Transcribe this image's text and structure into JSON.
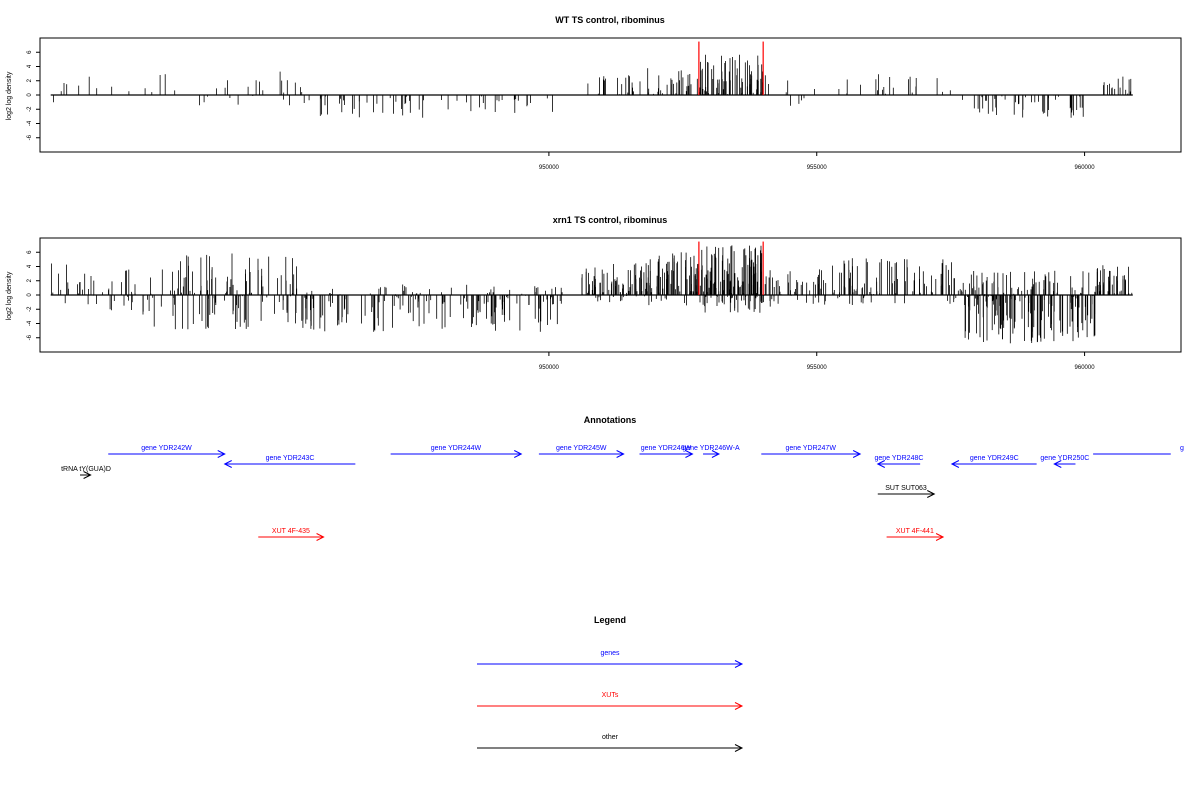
{
  "chart_data": [
    {
      "type": "bar",
      "title": "WT TS control, ribominus",
      "ylabel": "log2 log density",
      "xlabel": "",
      "xlim": [
        940500,
        961800
      ],
      "ylim": [
        -8,
        8
      ],
      "x_ticks": [
        950000,
        955000,
        960000
      ],
      "x_tick_labels": [
        "950000",
        "955000",
        "960000"
      ],
      "y_ticks": [
        -6,
        -4,
        -2,
        0,
        2,
        4,
        6
      ],
      "y_tick_labels": [
        "-6",
        "-4",
        "-2",
        "0",
        "2",
        "4",
        "6"
      ],
      "highlight_color": "#ff0000",
      "highlight_x": [
        952800,
        954000
      ],
      "highlight_top": 7.5,
      "segments": [
        {
          "start": 940700,
          "end": 941000,
          "min": -1.2,
          "max": 2.5,
          "n": 4
        },
        {
          "start": 941000,
          "end": 943000,
          "min": -0.5,
          "max": 3.5,
          "n": 9
        },
        {
          "start": 943000,
          "end": 945500,
          "min": -3.0,
          "max": 3.3,
          "n": 24
        },
        {
          "start": 945500,
          "end": 948200,
          "min": -3.2,
          "max": 0.5,
          "n": 38
        },
        {
          "start": 948200,
          "end": 950200,
          "min": -2.6,
          "max": 0.3,
          "n": 22
        },
        {
          "start": 950700,
          "end": 951800,
          "min": -0.3,
          "max": 2.8,
          "n": 18
        },
        {
          "start": 951800,
          "end": 952800,
          "min": -0.3,
          "max": 3.8,
          "n": 28
        },
        {
          "start": 952800,
          "end": 954000,
          "min": -0.5,
          "max": 5.8,
          "n": 72
        },
        {
          "start": 954000,
          "end": 955000,
          "min": -2.0,
          "max": 3.0,
          "n": 10
        },
        {
          "start": 955400,
          "end": 957700,
          "min": -0.3,
          "max": 3.0,
          "n": 24
        },
        {
          "start": 957700,
          "end": 960000,
          "min": -3.2,
          "max": 0.3,
          "n": 48
        },
        {
          "start": 960300,
          "end": 960900,
          "min": -0.5,
          "max": 3.2,
          "n": 16
        }
      ]
    },
    {
      "type": "bar",
      "title": "xrn1 TS control, ribominus",
      "ylabel": "log2 log density",
      "xlabel": "",
      "xlim": [
        940500,
        961800
      ],
      "ylim": [
        -8,
        8
      ],
      "x_ticks": [
        950000,
        955000,
        960000
      ],
      "x_tick_labels": [
        "950000",
        "955000",
        "960000"
      ],
      "y_ticks": [
        -6,
        -4,
        -2,
        0,
        2,
        4,
        6
      ],
      "y_tick_labels": [
        "-6",
        "-4",
        "-2",
        "0",
        "2",
        "4",
        "6"
      ],
      "highlight_color": "#ff0000",
      "highlight_x": [
        952800,
        954000
      ],
      "highlight_top": 7.5,
      "segments": [
        {
          "start": 940700,
          "end": 941200,
          "min": -1.2,
          "max": 4.6,
          "n": 8
        },
        {
          "start": 941200,
          "end": 942400,
          "min": -2.5,
          "max": 4.0,
          "n": 40
        },
        {
          "start": 942400,
          "end": 945400,
          "min": -5.0,
          "max": 6.0,
          "n": 130
        },
        {
          "start": 945400,
          "end": 950300,
          "min": -5.2,
          "max": 1.5,
          "n": 190
        },
        {
          "start": 950600,
          "end": 951800,
          "min": -1.0,
          "max": 4.5,
          "n": 80
        },
        {
          "start": 951800,
          "end": 952800,
          "min": -1.5,
          "max": 6.0,
          "n": 80
        },
        {
          "start": 952800,
          "end": 954000,
          "min": -2.6,
          "max": 7.0,
          "n": 150
        },
        {
          "start": 954000,
          "end": 955200,
          "min": -1.8,
          "max": 3.6,
          "n": 60
        },
        {
          "start": 955200,
          "end": 957700,
          "min": -1.5,
          "max": 5.2,
          "n": 100
        },
        {
          "start": 957700,
          "end": 960200,
          "min": -6.8,
          "max": 3.5,
          "n": 200
        },
        {
          "start": 960200,
          "end": 960900,
          "min": -0.5,
          "max": 4.5,
          "n": 40
        }
      ]
    }
  ],
  "annotations": {
    "title": "Annotations",
    "colors": {
      "genes": "#0000ff",
      "XUTs": "#ff0000",
      "other": "#000000"
    },
    "features": [
      {
        "label": "tRNA tY(GUA)D",
        "start": 941000,
        "end": 941300,
        "strand": "+",
        "row": 2,
        "kind": "other"
      },
      {
        "label": "gene YDR242W",
        "start": 941800,
        "end": 945100,
        "strand": "+",
        "row": 0,
        "kind": "genes"
      },
      {
        "label": "gene YDR243C",
        "start": 945100,
        "end": 948800,
        "strand": "-",
        "row": 1,
        "kind": "genes"
      },
      {
        "label": "gene YDR244W",
        "start": 949800,
        "end": 953500,
        "strand": "+",
        "row": 0,
        "kind": "genes"
      },
      {
        "label": "gene YDR245W",
        "start": 954000,
        "end": 956400,
        "strand": "+",
        "row": 0,
        "kind": "genes"
      },
      {
        "label": "gene YDR246W",
        "start": 956850,
        "end": 958350,
        "strand": "+",
        "row": 0,
        "kind": "genes"
      },
      {
        "label": "gene YDR246W-A",
        "start": 958650,
        "end": 959100,
        "strand": "+",
        "row": 0,
        "kind": "genes"
      },
      {
        "label": "gene YDR247W",
        "start": 960300,
        "end": 963100,
        "strand": "+",
        "row": 0,
        "kind": "genes"
      },
      {
        "label": "gene YDR248C",
        "start": 963600,
        "end": 964800,
        "strand": "-",
        "row": 1,
        "kind": "genes"
      },
      {
        "label": "gene YDR249C",
        "start": 965700,
        "end": 968100,
        "strand": "-",
        "row": 1,
        "kind": "genes"
      },
      {
        "label": "gene YDR250C",
        "start": 968600,
        "end": 969200,
        "strand": "-",
        "row": 1,
        "kind": "genes"
      },
      {
        "label": "g",
        "start": 969700,
        "end": 971900,
        "strand": "+",
        "row": 0,
        "kind": "genes",
        "clipped": true
      },
      {
        "label": "SUT SUT063",
        "start": 963600,
        "end": 965200,
        "strand": "+",
        "row": 3,
        "kind": "other"
      },
      {
        "label": "XUT 4F-435",
        "start": 946050,
        "end": 947900,
        "strand": "+",
        "row": 4,
        "kind": "XUTs"
      },
      {
        "label": "XUT 4F-441",
        "start": 963850,
        "end": 965450,
        "strand": "+",
        "row": 4,
        "kind": "XUTs"
      }
    ]
  },
  "legend": {
    "title": "Legend",
    "items": [
      {
        "label": "genes",
        "color": "#0000ff"
      },
      {
        "label": "XUTs",
        "color": "#ff0000"
      },
      {
        "label": "other",
        "color": "#000000"
      }
    ]
  }
}
